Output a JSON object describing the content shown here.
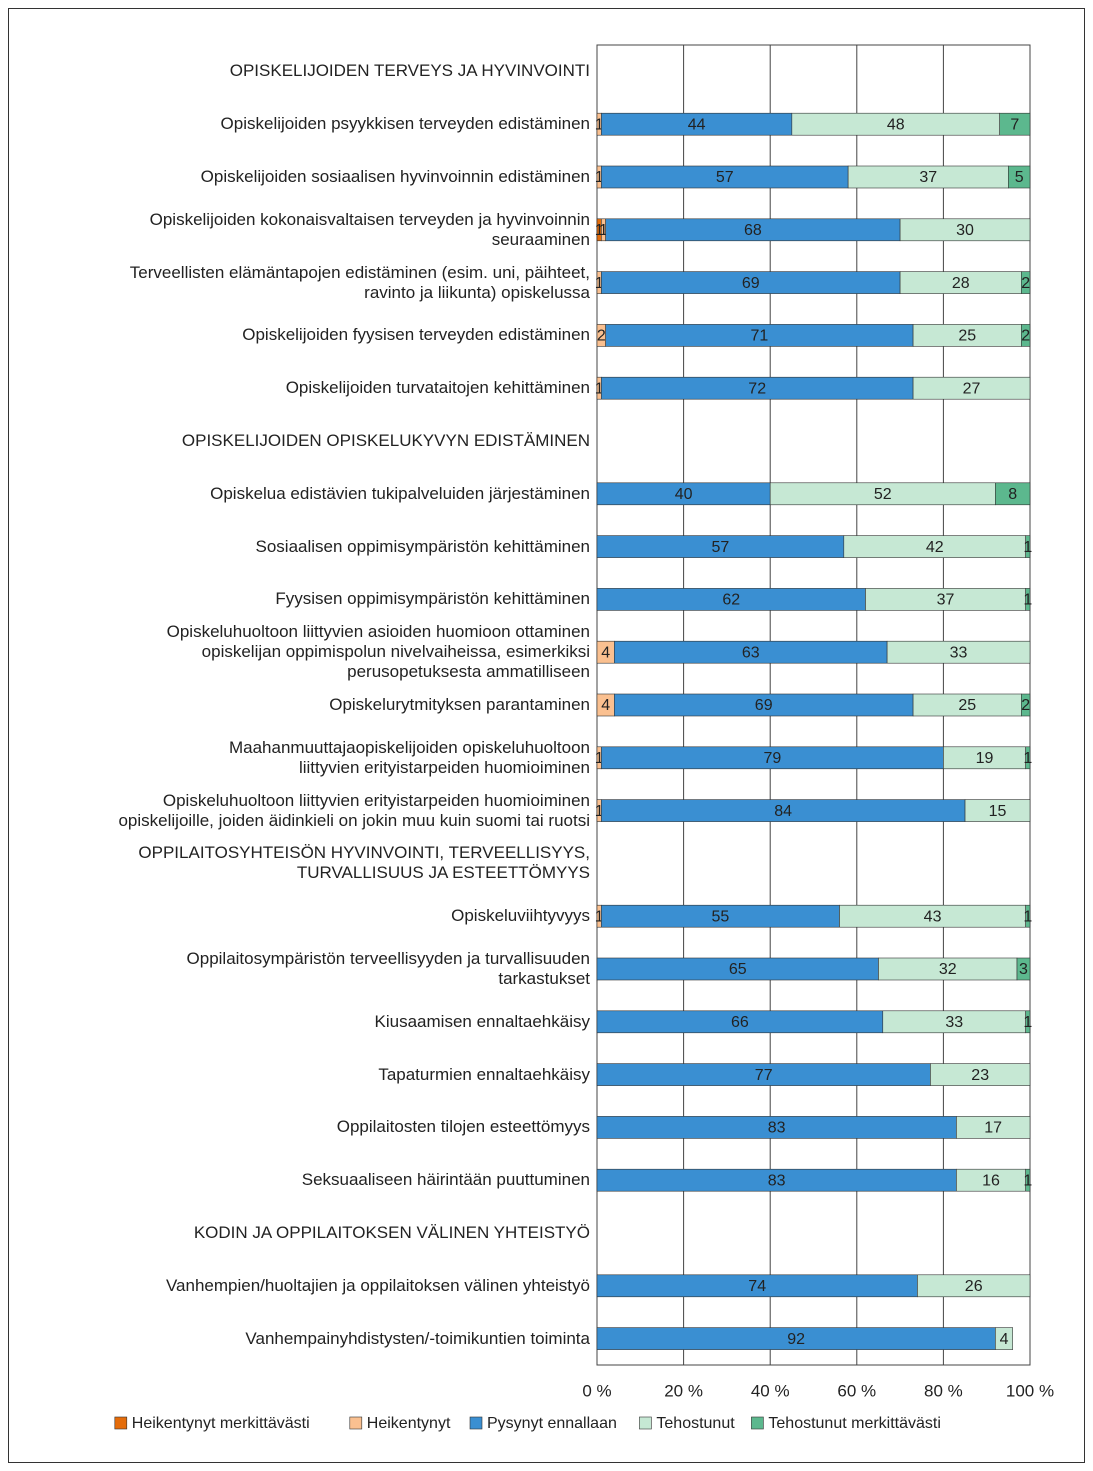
{
  "chart_data": {
    "type": "stacked-barh",
    "categories": [
      "OPISKELIJOIDEN TERVEYS JA HYVINVOINTI",
      "Opiskelijoiden psyykkisen terveyden edistäminen",
      "Opiskelijoiden sosiaalisen hyvinvoinnin edistäminen",
      "Opiskelijoiden kokonaisvaltaisen terveyden ja hyvinvoinnin\nseuraaminen",
      "Terveellisten elämäntapojen edistäminen (esim. uni, päihteet,\nravinto ja liikunta) opiskelussa",
      "Opiskelijoiden fyysisen terveyden edistäminen",
      "Opiskelijoiden turvataitojen kehittäminen",
      "OPISKELIJOIDEN OPISKELUKYVYN EDISTÄMINEN",
      "Opiskelua edistävien tukipalveluiden järjestäminen",
      "Sosiaalisen oppimisympäristön kehittäminen",
      "Fyysisen oppimisympäristön kehittäminen",
      "Opiskeluhuoltoon liittyvien asioiden huomioon ottaminen\nopiskelijan oppimispolun nivelvaiheissa, esimerkiksi\nperusopetuksesta ammatilliseen",
      "Opiskelurytmityksen parantaminen",
      "Maahanmuuttajaopiskelijoiden opiskeluhuoltoon\nliittyvien erityistarpeiden huomioiminen",
      "Opiskeluhuoltoon liittyvien erityistarpeiden huomioiminen\nopiskelijoille, joiden äidinkieli on jokin muu kuin suomi tai ruotsi",
      "OPPILAITOSYHTEISÖN HYVINVOINTI, TERVEELLISYYS,\nTURVALLISUUS JA ESTEETTÖMYYS",
      "Opiskeluviihtyvyys",
      "Oppilaitosympäristön terveellisyyden ja turvallisuuden\ntarkastukset",
      "Kiusaamisen ennaltaehkäisy",
      "Tapaturmien ennaltaehkäisy",
      "Oppilaitosten tilojen esteettömyys",
      "Seksuaaliseen häirintään puuttuminen",
      "KODIN JA OPPILAITOKSEN VÄLINEN YHTEISTYÖ",
      "Vanhempien/huoltajien ja oppilaitoksen välinen yhteistyö",
      "Vanhempainyhdistysten/-toimikuntien toiminta"
    ],
    "series": [
      {
        "name": "Heikentynyt merkittävästi",
        "color": "#e46c0a",
        "values": [
          null,
          null,
          null,
          1,
          null,
          null,
          null,
          null,
          null,
          null,
          null,
          null,
          null,
          null,
          null,
          null,
          null,
          null,
          null,
          null,
          null,
          null,
          null,
          null,
          null
        ]
      },
      {
        "name": "Heikentynyt",
        "color": "#fac090",
        "values": [
          null,
          1,
          1,
          1,
          1,
          2,
          1,
          null,
          null,
          null,
          null,
          4,
          4,
          1,
          1,
          null,
          1,
          null,
          null,
          null,
          null,
          null,
          null,
          null,
          null
        ]
      },
      {
        "name": "Pysynyt ennallaan",
        "color": "#3a8fd2",
        "values": [
          null,
          44,
          57,
          68,
          69,
          71,
          72,
          null,
          40,
          57,
          62,
          63,
          69,
          79,
          84,
          null,
          55,
          65,
          66,
          77,
          83,
          83,
          null,
          74,
          92
        ]
      },
      {
        "name": "Tehostunut",
        "color": "#c6e8d4",
        "values": [
          null,
          48,
          37,
          30,
          28,
          25,
          27,
          null,
          52,
          42,
          37,
          33,
          25,
          19,
          15,
          null,
          43,
          32,
          33,
          23,
          17,
          16,
          null,
          26,
          4
        ]
      },
      {
        "name": "Tehostunut merkittävästi",
        "color": "#5cb88e",
        "values": [
          null,
          7,
          5,
          null,
          2,
          2,
          null,
          null,
          8,
          1,
          1,
          null,
          2,
          1,
          null,
          null,
          1,
          3,
          1,
          null,
          null,
          1,
          null,
          null,
          null
        ]
      }
    ],
    "xlim": [
      0,
      100
    ],
    "xticks": [
      {
        "value": 0,
        "label": "0 %"
      },
      {
        "value": 20,
        "label": "20 %"
      },
      {
        "value": 40,
        "label": "40 %"
      },
      {
        "value": 60,
        "label": "60 %"
      },
      {
        "value": 80,
        "label": "80 %"
      },
      {
        "value": 100,
        "label": "100 %"
      }
    ],
    "grid": true,
    "legend": "bottom"
  }
}
